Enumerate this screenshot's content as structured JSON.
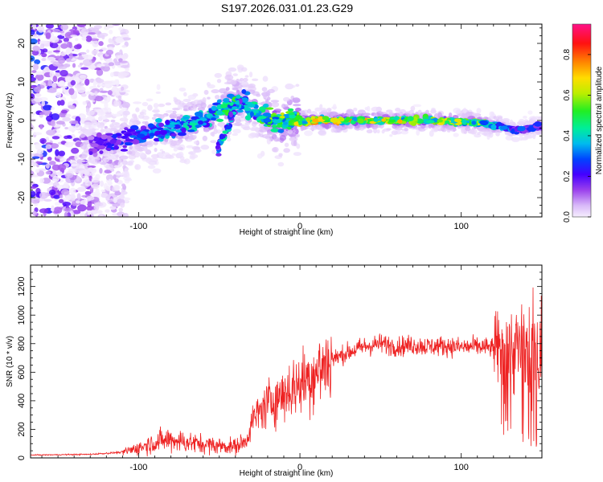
{
  "figure_title": "S197.2026.031.01.23.G29",
  "chart_data": [
    {
      "type": "heatmap",
      "name": "spectrogram",
      "xlabel": "Height of straight line (km)",
      "ylabel": "Frequency (Hz)",
      "xlim": [
        -167,
        150
      ],
      "ylim": [
        -25,
        25
      ],
      "xticks": [
        -100,
        0,
        100
      ],
      "yticks": [
        -20,
        -10,
        0,
        10,
        20
      ],
      "colorbar": {
        "label": "Normalized spectral amplitude",
        "range": [
          0,
          0.95
        ],
        "ticks": [
          0.0,
          0.2,
          0.4,
          0.6,
          0.8
        ]
      },
      "ridge": {
        "x": [
          -128,
          -110,
          -90,
          -70,
          -55,
          -42,
          -35,
          -30,
          -20,
          -12,
          -5,
          0,
          20,
          50,
          80,
          110,
          125,
          135,
          150
        ],
        "freq": [
          -6,
          -5,
          -3,
          -1,
          1,
          4.5,
          5,
          3,
          1,
          -1,
          1,
          0,
          0,
          0,
          0,
          -0.5,
          -1.5,
          -2.5,
          -1.5
        ],
        "amplitude": [
          0.15,
          0.25,
          0.3,
          0.35,
          0.4,
          0.45,
          0.4,
          0.35,
          0.5,
          0.55,
          0.5,
          0.6,
          0.65,
          0.6,
          0.6,
          0.55,
          0.35,
          0.25,
          0.25
        ]
      }
    },
    {
      "type": "line",
      "name": "snr",
      "xlabel": "Height of straight line (km)",
      "ylabel": "SNR (10 * v/v)",
      "xlim": [
        -167,
        150
      ],
      "ylim": [
        0,
        1350
      ],
      "xticks": [
        -100,
        0,
        100
      ],
      "yticks": [
        0,
        200,
        400,
        600,
        800,
        1000,
        1200
      ],
      "color": "#ee2222",
      "trend": {
        "x": [
          -167,
          -130,
          -110,
          -100,
          -90,
          -80,
          -70,
          -60,
          -50,
          -40,
          -33,
          -30,
          -25,
          -20,
          -10,
          0,
          10,
          20,
          30,
          40,
          50,
          60,
          70,
          80,
          90,
          100,
          110,
          120,
          130,
          140,
          150
        ],
        "y": [
          20,
          25,
          40,
          70,
          110,
          130,
          110,
          95,
          85,
          80,
          120,
          250,
          320,
          380,
          450,
          520,
          600,
          690,
          740,
          780,
          800,
          780,
          790,
          780,
          785,
          775,
          780,
          770,
          760,
          760,
          760
        ]
      }
    }
  ]
}
